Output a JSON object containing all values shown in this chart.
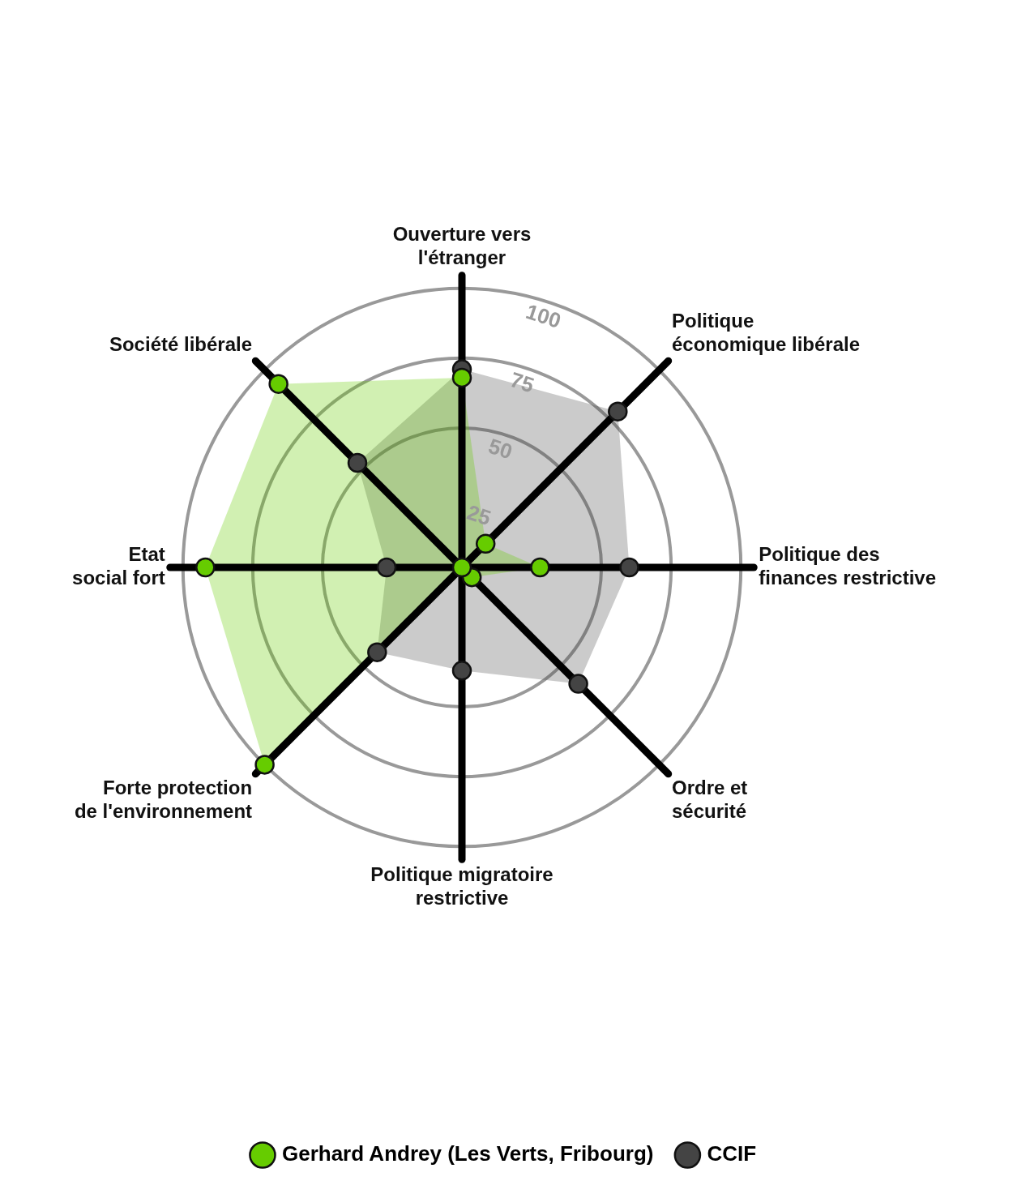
{
  "chart_data": {
    "type": "radar",
    "categories": [
      "Ouverture vers l'étranger",
      "Politique économique libérale",
      "Politique des finances restrictive",
      "Ordre et sécurité",
      "Politique migratoire restrictive",
      "Forte protection de l'environnement",
      "Etat social fort",
      "Société libérale"
    ],
    "series": [
      {
        "name": "Gerhard Andrey (Les Verts, Fribourg)",
        "color": "#66cc00",
        "values": [
          68,
          12,
          28,
          5,
          0,
          100,
          92,
          93
        ]
      },
      {
        "name": "CCIF",
        "color": "#444444",
        "values": [
          71,
          79,
          60,
          59,
          37,
          43,
          27,
          53
        ]
      }
    ],
    "ylim": [
      0,
      100
    ],
    "yticks": [
      25,
      50,
      75,
      100
    ],
    "grid": true,
    "marker": "circle",
    "legend": "bottom"
  }
}
